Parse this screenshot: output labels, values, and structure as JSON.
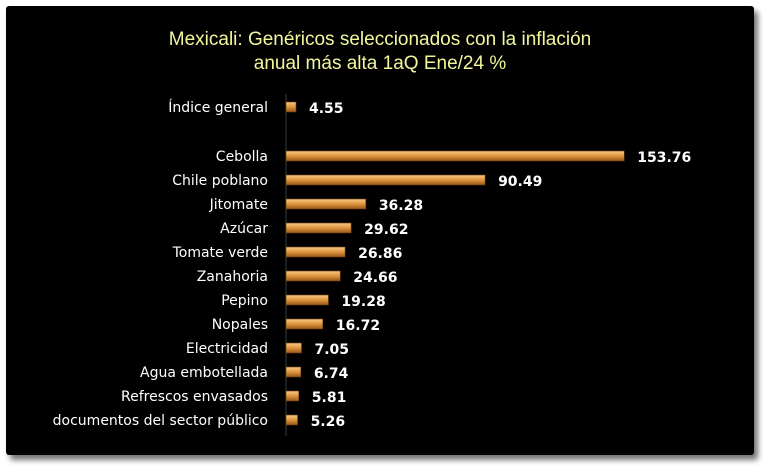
{
  "chart_data": {
    "type": "bar",
    "orientation": "horizontal",
    "title_lines": [
      "Mexicali: Genéricos seleccionados con la inflación",
      "anual más alta 1aQ Ene/24 %"
    ],
    "categories": [
      "Índice general",
      "Cebolla",
      "Chile poblano",
      "Jitomate",
      "Azúcar",
      "Tomate verde",
      "Zanahoria",
      "Pepino",
      "Nopales",
      "Electricidad",
      "Agua embotellada",
      "Refrescos envasados",
      "documentos del sector público"
    ],
    "values": [
      4.55,
      153.76,
      90.49,
      36.28,
      29.62,
      26.86,
      24.66,
      19.28,
      16.72,
      7.05,
      6.74,
      5.81,
      5.26
    ],
    "value_labels": [
      "4.55",
      "153.76",
      "90.49",
      "36.28",
      "29.62",
      "26.86",
      "24.66",
      "19.28",
      "16.72",
      "7.05",
      "6.74",
      "5.81",
      "5.26"
    ],
    "xlim": [
      0,
      160
    ],
    "grid": false,
    "legend": "none",
    "colors": {
      "background": "#000000",
      "title": "#f2f79c",
      "bar_light": "#f6c98a",
      "bar_mid": "#e39a44",
      "bar_dark": "#9a5816",
      "text": "#ffffff"
    }
  }
}
